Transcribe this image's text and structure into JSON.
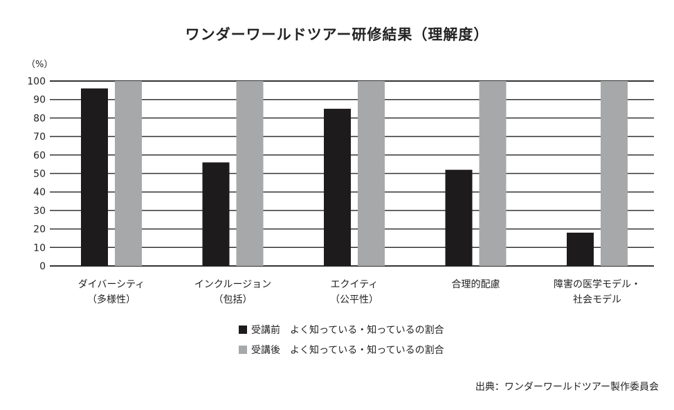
{
  "chart_data": {
    "type": "bar",
    "title": "ワンダーワールドツアー研修結果（理解度）",
    "ylabel": "（%）",
    "ylim": [
      0,
      100
    ],
    "yticks": [
      0,
      10,
      20,
      30,
      40,
      50,
      60,
      70,
      80,
      90,
      100
    ],
    "grid": true,
    "legend_placement": "bottom",
    "categories": [
      [
        "ダイバーシティ",
        "（多様性）"
      ],
      [
        "インクルージョン",
        "（包括）"
      ],
      [
        "エクイティ",
        "（公平性）"
      ],
      [
        "合理的配慮",
        ""
      ],
      [
        "障害の医学モデル・",
        "社会モデル"
      ]
    ],
    "series": [
      {
        "name": "受講前　よく知っている・知っているの割合",
        "color": "#1e1b1c",
        "values": [
          96,
          56,
          85,
          52,
          18
        ]
      },
      {
        "name": "受講後　よく知っている・知っているの割合",
        "color": "#a7a8aa",
        "values": [
          100,
          100,
          100,
          100,
          100
        ]
      }
    ]
  },
  "source": "出典：ワンダーワールドツアー製作委員会"
}
